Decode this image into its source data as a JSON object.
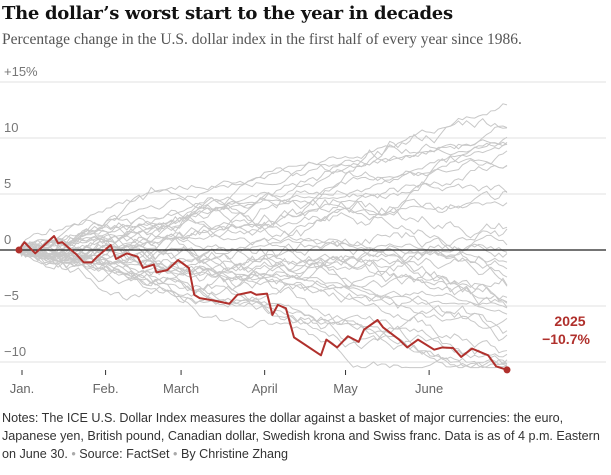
{
  "chart_data": {
    "type": "line",
    "title": "The dollar’s worst start to the year in decades",
    "subtitle": "Percentage change in the U.S. dollar index in the first half of every year since 1986.",
    "xlabel": "",
    "ylabel": "",
    "x_unit": "day of year",
    "xlim": [
      0,
      181
    ],
    "ylim": [
      -11.5,
      16
    ],
    "y_ticks": [
      {
        "v": 15,
        "label": "+15%"
      },
      {
        "v": 10,
        "label": "10"
      },
      {
        "v": 5,
        "label": "5"
      },
      {
        "v": 0,
        "label": "0"
      },
      {
        "v": -5,
        "label": "−5"
      },
      {
        "v": -10,
        "label": "−10"
      }
    ],
    "x_ticks": [
      {
        "v": 0,
        "label": "Jan."
      },
      {
        "v": 31,
        "label": "Feb."
      },
      {
        "v": 59,
        "label": "March"
      },
      {
        "v": 90,
        "label": "April"
      },
      {
        "v": 120,
        "label": "May"
      },
      {
        "v": 151,
        "label": "June"
      }
    ],
    "grid": true,
    "highlight": {
      "name": "2025",
      "end_label": "−10.7%",
      "color": "#b0302c",
      "x": [
        0,
        2,
        6,
        13,
        14.5,
        16,
        21.5,
        24,
        27,
        29,
        34,
        36,
        40,
        44,
        46,
        50,
        51,
        55,
        59,
        63,
        65,
        67,
        72,
        78,
        81,
        86,
        88,
        92,
        94,
        96,
        99,
        102,
        112,
        114,
        118,
        122,
        126,
        128,
        133,
        135,
        141,
        144,
        148,
        154,
        157,
        161,
        164,
        168,
        174,
        177,
        181
      ],
      "y": [
        0,
        0.7,
        -0.3,
        1.25,
        0.6,
        0.7,
        -0.45,
        -1.1,
        -1.1,
        -0.6,
        0.45,
        -0.8,
        -0.3,
        -0.6,
        -1.6,
        -1.3,
        -2.0,
        -1.8,
        -0.9,
        -1.6,
        -4.0,
        -4.3,
        -4.5,
        -4.8,
        -4.0,
        -3.75,
        -4.0,
        -3.9,
        -5.8,
        -4.9,
        -5.2,
        -7.8,
        -9.4,
        -8.0,
        -8.7,
        -7.7,
        -8.2,
        -7.1,
        -6.25,
        -6.9,
        -8.0,
        -8.7,
        -8.0,
        -8.9,
        -8.7,
        -8.75,
        -9.55,
        -8.8,
        -9.4,
        -10.4,
        -10.7
      ]
    },
    "other_years": {
      "count": 39,
      "color": "#c8c8c8",
      "range": [
        -10.5,
        16
      ]
    }
  },
  "notes": {
    "text": "Notes: The ICE U.S. Dollar Index measures the dollar against a basket of major currencies: the euro, Japanese yen, British pound, Canadian dollar, Swedish krona and Swiss franc. Data is as of 4 p.m. Eastern on June 30.",
    "source": "Source: FactSet",
    "byline": "By Christine Zhang"
  }
}
